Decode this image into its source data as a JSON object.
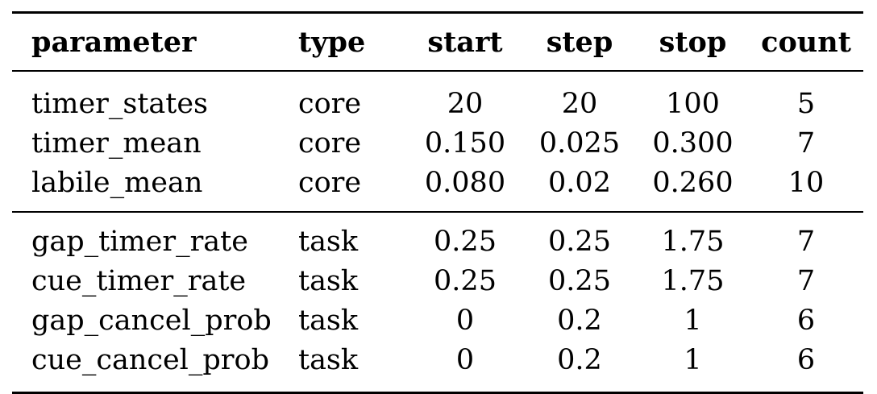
{
  "table": {
    "headers": [
      "parameter",
      "type",
      "start",
      "step",
      "stop",
      "count"
    ],
    "groups": [
      {
        "rows": [
          [
            "timer_states",
            "core",
            "20",
            "20",
            "100",
            "5"
          ],
          [
            "timer_mean",
            "core",
            "0.150",
            "0.025",
            "0.300",
            "7"
          ],
          [
            "labile_mean",
            "core",
            "0.080",
            "0.02",
            "0.260",
            "10"
          ]
        ]
      },
      {
        "rows": [
          [
            "gap_timer_rate",
            "task",
            "0.25",
            "0.25",
            "1.75",
            "7"
          ],
          [
            "cue_timer_rate",
            "task",
            "0.25",
            "0.25",
            "1.75",
            "7"
          ],
          [
            "gap_cancel_prob",
            "task",
            "0",
            "0.2",
            "1",
            "6"
          ],
          [
            "cue_cancel_prob",
            "task",
            "0",
            "0.2",
            "1",
            "6"
          ]
        ]
      }
    ]
  }
}
